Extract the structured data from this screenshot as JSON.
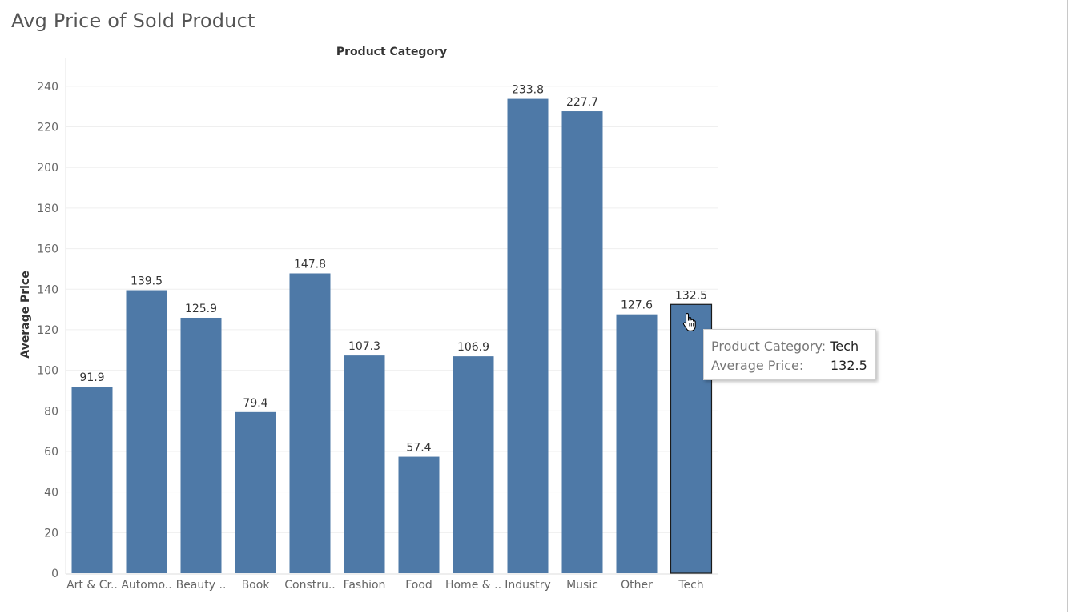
{
  "sheet": {
    "title": "Avg Price of Sold Product"
  },
  "chart_data": {
    "type": "bar",
    "title": "Avg Price of Sold Product",
    "xlabel": "Product Category",
    "ylabel": "Average Price",
    "categories": [
      "Art & Cr..",
      "Automo..",
      "Beauty ..",
      "Book",
      "Constru..",
      "Fashion",
      "Food",
      "Home & ..",
      "Industry",
      "Music",
      "Other",
      "Tech"
    ],
    "values": [
      91.9,
      139.5,
      125.9,
      79.4,
      147.8,
      107.3,
      57.4,
      106.9,
      233.8,
      227.7,
      127.6,
      132.5
    ],
    "value_labels": [
      "91.9",
      "139.5",
      "125.9",
      "79.4",
      "147.8",
      "107.3",
      "57.4",
      "106.9",
      "233.8",
      "227.7",
      "127.6",
      "132.5"
    ],
    "y_ticks": [
      0,
      20,
      40,
      60,
      80,
      100,
      120,
      140,
      160,
      180,
      200,
      220,
      240
    ],
    "ylim": [
      0,
      251
    ],
    "grid": true,
    "bar_color": "#4e79a7",
    "highlighted_category": "Tech"
  },
  "tooltip": {
    "category_label": "Product Category:",
    "category_value": "Tech",
    "price_label": "Average Price:",
    "price_value": "132.5"
  },
  "icons": {
    "cursor": "hand-pointer-icon"
  }
}
